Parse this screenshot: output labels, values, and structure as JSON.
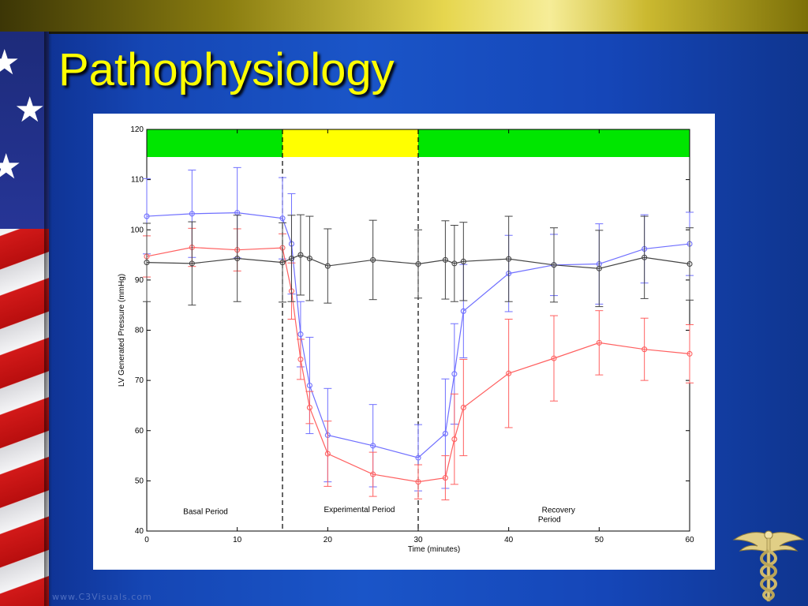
{
  "slide": {
    "title": "Pathophysiology",
    "watermark": "www.C3Visuals.com",
    "colors": {
      "title": "#ffff00",
      "background": "#1a55c8",
      "band_normal": "#00e600",
      "band_experimental": "#ffff00"
    },
    "icons": {
      "flag": "american-flag",
      "logo": "caduceus"
    }
  },
  "chart_data": {
    "type": "line",
    "xlabel": "Time (minutes)",
    "ylabel": "LV Generated Pressure (mmHg)",
    "xlim": [
      0,
      60
    ],
    "ylim": [
      40,
      120
    ],
    "xticks": [
      0,
      10,
      20,
      30,
      40,
      50,
      60
    ],
    "yticks": [
      40,
      50,
      60,
      70,
      80,
      90,
      100,
      110,
      120
    ],
    "grid": false,
    "legend": null,
    "phase_dividers": [
      15,
      30
    ],
    "phase_bands": [
      {
        "from": 0,
        "to": 15,
        "y_from": 114.5,
        "y_to": 120,
        "color": "#00e600"
      },
      {
        "from": 15,
        "to": 30,
        "y_from": 114.5,
        "y_to": 120,
        "color": "#ffff00"
      },
      {
        "from": 30,
        "to": 60,
        "y_from": 114.5,
        "y_to": 120,
        "color": "#00e600"
      }
    ],
    "annotations": [
      {
        "text": "Basal Period",
        "x": 6.5,
        "y": 43.4
      },
      {
        "text": "Experimental Period",
        "x": 23.5,
        "y": 43.8
      },
      {
        "text": "Recovery",
        "x": 45.5,
        "y": 43.7
      },
      {
        "text": "Period",
        "x": 44.5,
        "y": 41.8
      }
    ],
    "series": [
      {
        "color": "#6f6fff",
        "x": [
          0,
          5,
          10,
          15,
          16,
          17,
          18,
          20,
          25,
          30,
          33,
          34,
          35,
          40,
          45,
          50,
          55,
          60
        ],
        "y": [
          102.7,
          103.2,
          103.4,
          102.3,
          97.2,
          79.2,
          69.0,
          59.1,
          57.0,
          54.6,
          59.4,
          71.3,
          83.8,
          91.3,
          93.0,
          93.2,
          96.2,
          97.2
        ],
        "err": [
          7.5,
          8.7,
          9.0,
          8.1,
          10.0,
          6.5,
          9.6,
          9.3,
          8.2,
          6.6,
          10.9,
          10.0,
          9.3,
          7.6,
          6.1,
          8.0,
          6.8,
          6.3
        ]
      },
      {
        "color": "#ff6060",
        "x": [
          0,
          5,
          10,
          15,
          16,
          17,
          18,
          20,
          25,
          30,
          33,
          34,
          35,
          40,
          45,
          50,
          55,
          60
        ],
        "y": [
          94.7,
          96.5,
          96.0,
          96.4,
          87.8,
          74.2,
          64.6,
          55.4,
          51.3,
          49.8,
          50.6,
          58.3,
          64.6,
          71.4,
          74.4,
          77.5,
          76.2,
          75.3
        ],
        "err": [
          4.1,
          3.8,
          4.2,
          2.8,
          5.6,
          4.0,
          3.2,
          6.5,
          4.4,
          3.4,
          4.4,
          9.0,
          9.6,
          10.8,
          8.5,
          6.4,
          6.2,
          5.8
        ]
      },
      {
        "color": "#444444",
        "x": [
          0,
          5,
          10,
          15,
          16,
          17,
          18,
          20,
          25,
          30,
          33,
          34,
          35,
          40,
          45,
          50,
          55,
          60
        ],
        "y": [
          93.5,
          93.3,
          94.3,
          93.5,
          94.3,
          95.0,
          94.3,
          92.8,
          94.0,
          93.2,
          94.0,
          93.3,
          93.7,
          94.2,
          93.0,
          92.3,
          94.5,
          93.2
        ],
        "err": [
          7.8,
          8.3,
          8.6,
          7.9,
          8.6,
          8.0,
          8.4,
          7.4,
          7.9,
          6.8,
          7.8,
          7.6,
          7.8,
          8.5,
          7.4,
          7.6,
          8.2,
          7.2
        ]
      }
    ]
  }
}
